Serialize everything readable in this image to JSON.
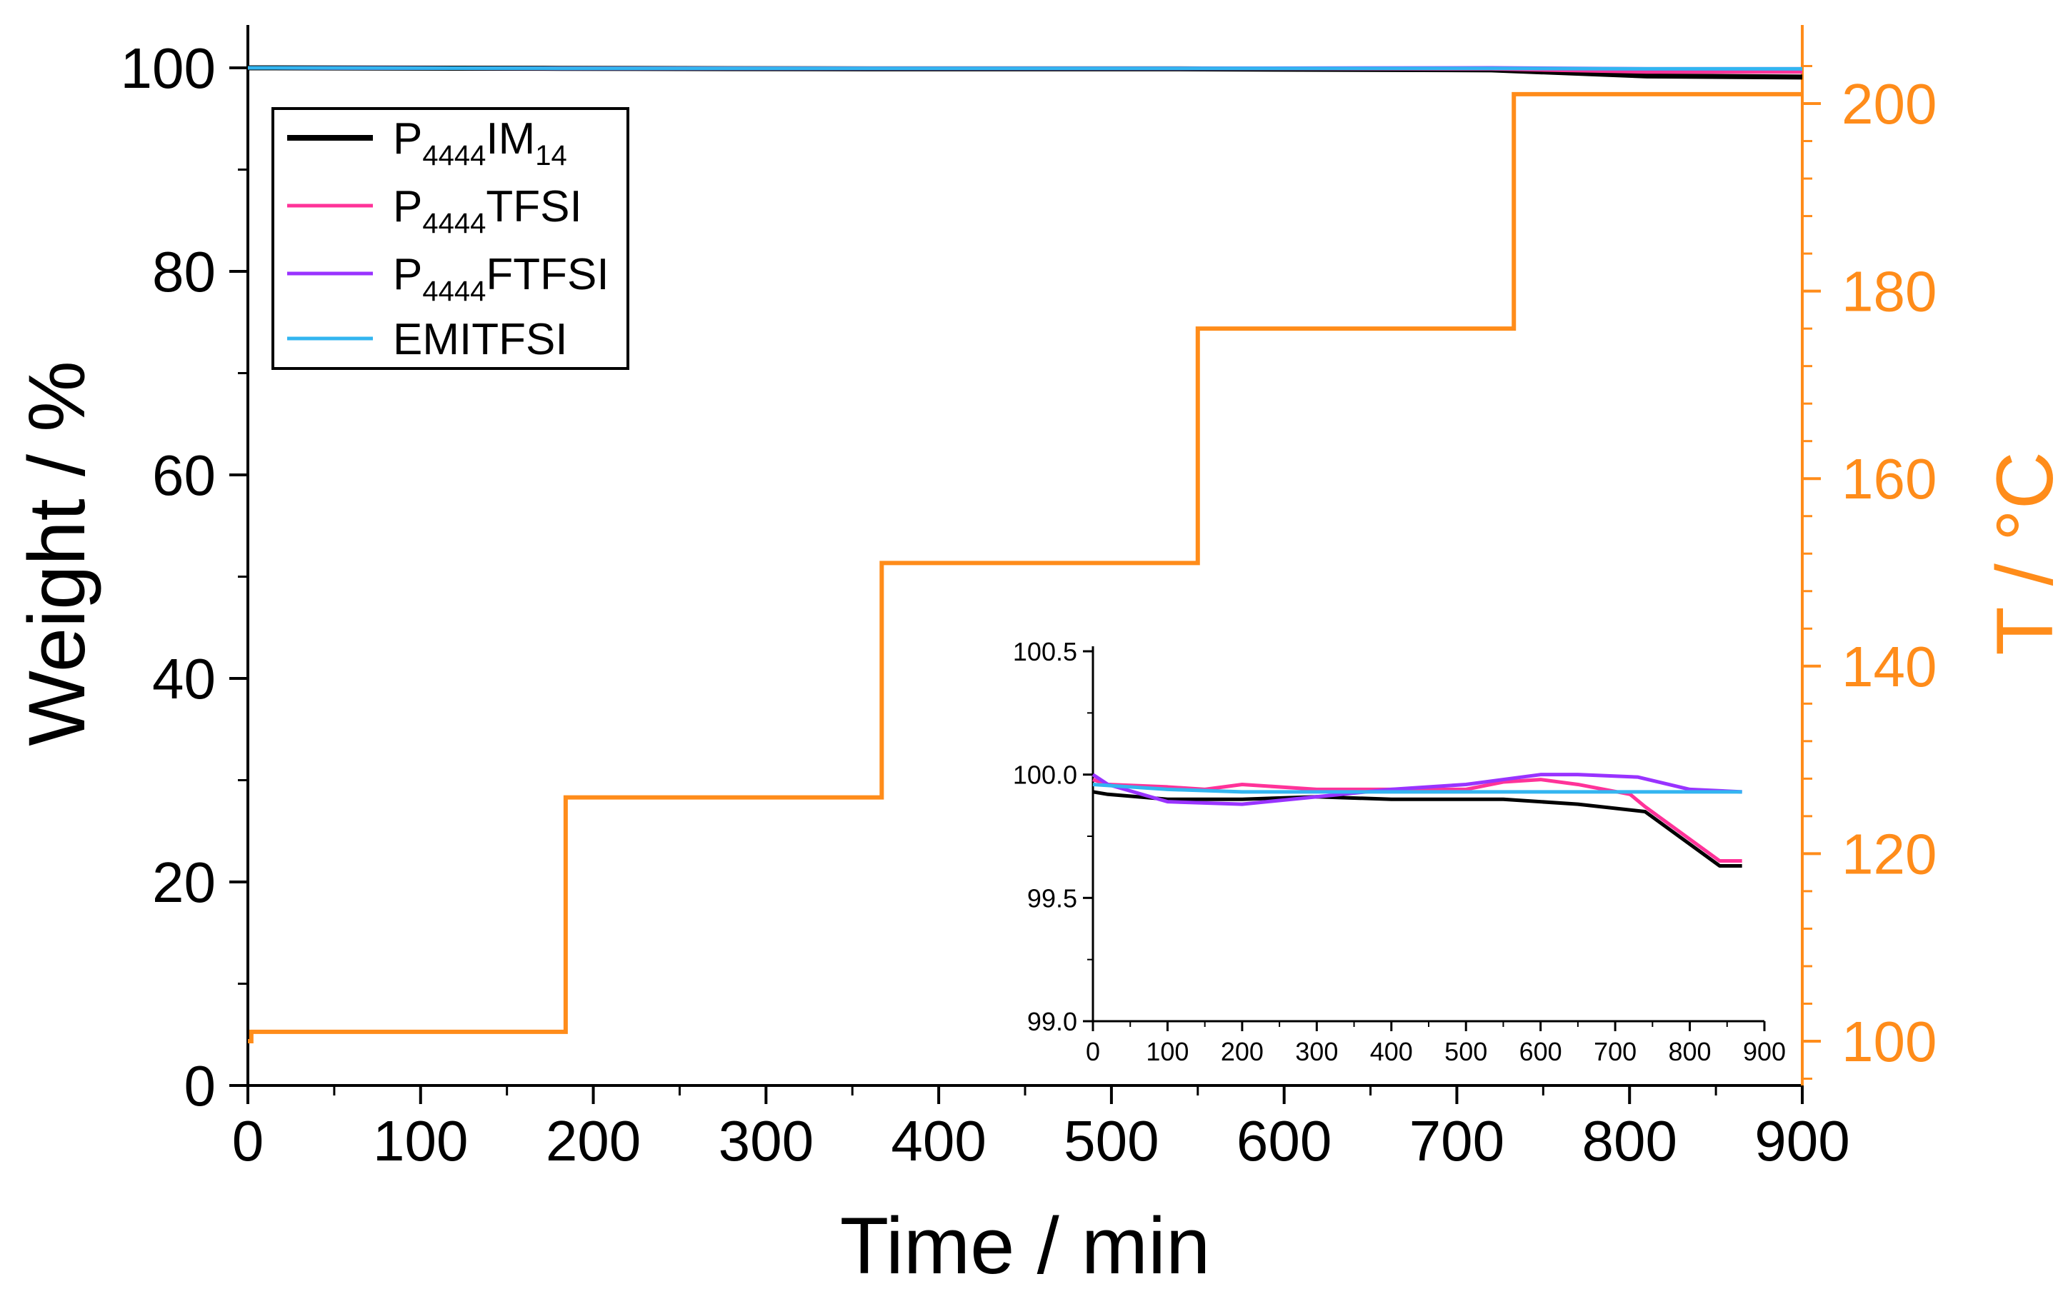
{
  "chart_data": [
    {
      "id": "main",
      "type": "line",
      "xlabel": "Time / min",
      "ylabel": "Weight / %",
      "y2label": "T / °C",
      "xlim": [
        0,
        900
      ],
      "ylim": [
        0,
        100
      ],
      "y2lim": [
        95,
        205
      ],
      "xticks": [
        0,
        100,
        200,
        300,
        400,
        500,
        600,
        700,
        800,
        900
      ],
      "xtick_labels": [
        "0",
        "100",
        "200",
        "300",
        "400",
        "500",
        "600",
        "700",
        "800",
        "900"
      ],
      "yticks": [
        0,
        20,
        40,
        60,
        80,
        100
      ],
      "ytick_labels": [
        "0",
        "20",
        "40",
        "60",
        "80",
        "100"
      ],
      "y2ticks": [
        100,
        120,
        140,
        160,
        180,
        200
      ],
      "y2tick_labels": [
        "100",
        "120",
        "140",
        "160",
        "180",
        "200"
      ],
      "legend_position": "top-left",
      "legend": [
        {
          "name": "P4444IM14",
          "base": "P",
          "sub1": "4444",
          "mid": "IM",
          "sub2": "14",
          "tail": "",
          "color": "#000000"
        },
        {
          "name": "P4444TFSI",
          "base": "P",
          "sub1": "4444",
          "mid": "TFSI",
          "sub2": "",
          "tail": "",
          "color": "#ff3399"
        },
        {
          "name": "P4444FTFSI",
          "base": "P",
          "sub1": "4444",
          "mid": "FTFSI",
          "sub2": "",
          "tail": "",
          "color": "#9933ff"
        },
        {
          "name": "EMITFSI",
          "base": "EMITFSI",
          "sub1": "",
          "mid": "",
          "sub2": "",
          "tail": "",
          "color": "#33b5f0"
        }
      ],
      "series": [
        {
          "name": "P4444IM14",
          "color": "#000000",
          "x": [
            0,
            180,
            360,
            540,
            720,
            810,
            900
          ],
          "y": [
            100.0,
            99.95,
            99.9,
            99.9,
            99.8,
            99.2,
            99.1
          ]
        },
        {
          "name": "P4444TFSI",
          "color": "#ff3399",
          "x": [
            0,
            180,
            360,
            540,
            720,
            810,
            900
          ],
          "y": [
            100.0,
            99.95,
            99.95,
            99.95,
            99.9,
            99.6,
            99.6
          ]
        },
        {
          "name": "P4444FTFSI",
          "color": "#9933ff",
          "x": [
            0,
            180,
            360,
            540,
            720,
            810,
            900
          ],
          "y": [
            100.0,
            99.95,
            99.95,
            99.95,
            100.0,
            99.9,
            99.9
          ]
        },
        {
          "name": "EMITFSI",
          "color": "#33b5f0",
          "x": [
            0,
            180,
            360,
            540,
            720,
            810,
            900
          ],
          "y": [
            100.0,
            99.95,
            99.95,
            99.95,
            99.95,
            99.9,
            99.9
          ]
        }
      ],
      "temperature_series": {
        "name": "T",
        "color": "#ff8c1a",
        "x": [
          0,
          2,
          2,
          182,
          184,
          184,
          365,
          367,
          367,
          548,
          550,
          550,
          731,
          733,
          733,
          900
        ],
        "y": [
          100,
          100,
          101,
          101,
          101,
          126,
          126,
          126,
          151,
          151,
          151,
          176,
          176,
          176,
          201,
          201
        ]
      }
    },
    {
      "id": "inset",
      "type": "line",
      "xlim": [
        0,
        900
      ],
      "ylim": [
        99.0,
        100.5
      ],
      "xticks": [
        0,
        100,
        200,
        300,
        400,
        500,
        600,
        700,
        800,
        900
      ],
      "xtick_labels": [
        "0",
        "100",
        "200",
        "300",
        "400",
        "500",
        "600",
        "700",
        "800",
        "900"
      ],
      "yticks": [
        99.0,
        99.5,
        100.0,
        100.5
      ],
      "ytick_labels": [
        "99.0",
        "99.5",
        "100.0",
        "100.5"
      ],
      "series": [
        {
          "name": "P4444IM14",
          "color": "#000000",
          "x": [
            0,
            20,
            100,
            150,
            200,
            300,
            400,
            550,
            650,
            740,
            840,
            870
          ],
          "y": [
            99.93,
            99.92,
            99.9,
            99.9,
            99.9,
            99.91,
            99.9,
            99.9,
            99.88,
            99.85,
            99.63,
            99.63
          ]
        },
        {
          "name": "P4444TFSI",
          "color": "#ff3399",
          "x": [
            0,
            20,
            100,
            150,
            200,
            300,
            400,
            500,
            550,
            600,
            650,
            720,
            740,
            840,
            870
          ],
          "y": [
            99.98,
            99.96,
            99.95,
            99.94,
            99.96,
            99.94,
            99.94,
            99.94,
            99.97,
            99.98,
            99.96,
            99.92,
            99.87,
            99.65,
            99.65
          ]
        },
        {
          "name": "P4444FTFSI",
          "color": "#9933ff",
          "x": [
            0,
            20,
            100,
            200,
            300,
            400,
            500,
            550,
            600,
            650,
            730,
            800,
            870
          ],
          "y": [
            100.0,
            99.96,
            99.89,
            99.88,
            99.91,
            99.94,
            99.96,
            99.98,
            100.0,
            100.0,
            99.99,
            99.94,
            99.93
          ]
        },
        {
          "name": "EMITFSI",
          "color": "#33b5f0",
          "x": [
            0,
            50,
            100,
            200,
            300,
            400,
            500,
            600,
            700,
            800,
            870
          ],
          "y": [
            99.96,
            99.95,
            99.94,
            99.93,
            99.93,
            99.93,
            99.93,
            99.93,
            99.93,
            99.93,
            99.93
          ]
        }
      ]
    }
  ]
}
